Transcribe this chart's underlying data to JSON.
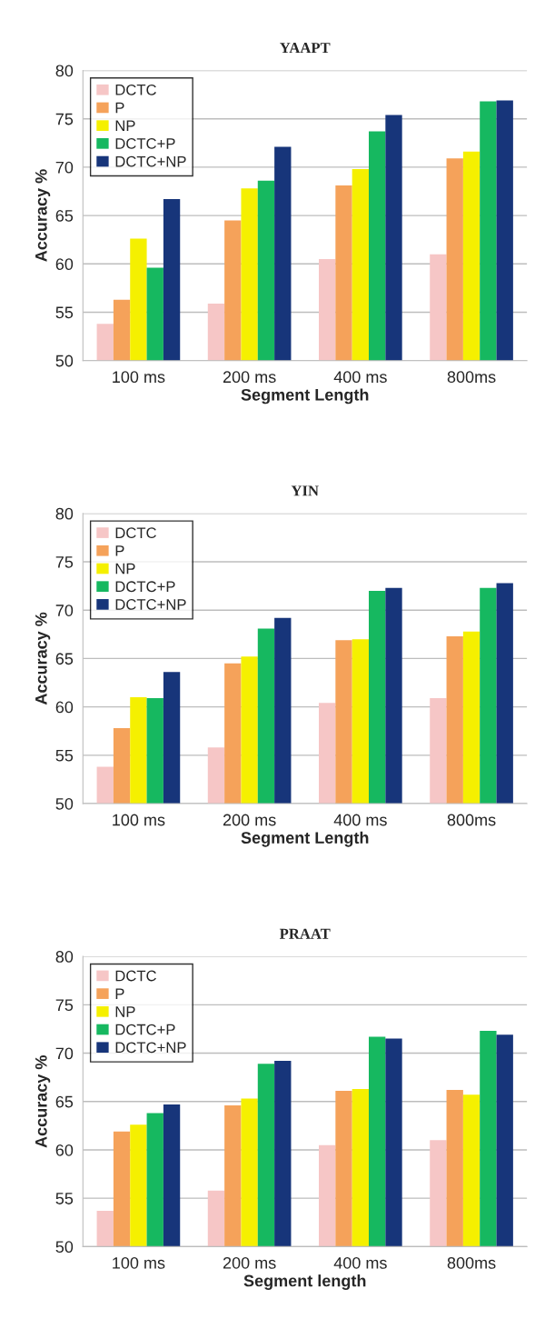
{
  "chart_data": [
    {
      "type": "bar",
      "title": "YAAPT",
      "xlabel": "Segment Length",
      "ylabel": "Accuracy %",
      "categories": [
        "100 ms",
        "200 ms",
        "400 ms",
        "800ms"
      ],
      "ylim": [
        50,
        80
      ],
      "yticks": [
        50,
        55,
        60,
        65,
        70,
        75,
        80
      ],
      "grid": "y",
      "legend": "top left",
      "series": [
        {
          "name": "DCTC",
          "color": "#f6c6c6",
          "values": [
            53.8,
            55.9,
            60.5,
            61.0
          ]
        },
        {
          "name": "P",
          "color": "#f5a25a",
          "values": [
            56.3,
            64.5,
            68.1,
            70.9
          ]
        },
        {
          "name": "NP",
          "color": "#f5f000",
          "values": [
            62.6,
            67.8,
            69.8,
            71.6
          ]
        },
        {
          "name": "DCTC+P",
          "color": "#16b860",
          "values": [
            59.6,
            68.6,
            73.7,
            76.8
          ]
        },
        {
          "name": "DCTC+NP",
          "color": "#17357a",
          "values": [
            66.7,
            72.1,
            75.4,
            76.9
          ]
        }
      ]
    },
    {
      "type": "bar",
      "title": "YIN",
      "xlabel": "Segment Length",
      "ylabel": "Accuracy %",
      "categories": [
        "100 ms",
        "200 ms",
        "400 ms",
        "800ms"
      ],
      "ylim": [
        50,
        80
      ],
      "yticks": [
        50,
        55,
        60,
        65,
        70,
        75,
        80
      ],
      "grid": "y",
      "legend": "top left",
      "series": [
        {
          "name": "DCTC",
          "color": "#f6c6c6",
          "values": [
            53.8,
            55.8,
            60.4,
            60.9
          ]
        },
        {
          "name": "P",
          "color": "#f5a25a",
          "values": [
            57.8,
            64.5,
            66.9,
            67.3
          ]
        },
        {
          "name": "NP",
          "color": "#f5f000",
          "values": [
            61.0,
            65.2,
            67.0,
            67.8
          ]
        },
        {
          "name": "DCTC+P",
          "color": "#16b860",
          "values": [
            60.9,
            68.1,
            72.0,
            72.3
          ]
        },
        {
          "name": "DCTC+NP",
          "color": "#17357a",
          "values": [
            63.6,
            69.2,
            72.3,
            72.8
          ]
        }
      ]
    },
    {
      "type": "bar",
      "title": "PRAAT",
      "xlabel": "Segment length",
      "ylabel": "Accuracy %",
      "categories": [
        "100 ms",
        "200 ms",
        "400 ms",
        "800ms"
      ],
      "ylim": [
        50,
        80
      ],
      "yticks": [
        50,
        55,
        60,
        65,
        70,
        75,
        80
      ],
      "grid": "y",
      "legend": "top left",
      "series": [
        {
          "name": "DCTC",
          "color": "#f6c6c6",
          "values": [
            53.7,
            55.8,
            60.5,
            61.0
          ]
        },
        {
          "name": "P",
          "color": "#f5a25a",
          "values": [
            61.9,
            64.6,
            66.1,
            66.2
          ]
        },
        {
          "name": "NP",
          "color": "#f5f000",
          "values": [
            62.6,
            65.3,
            66.3,
            65.7
          ]
        },
        {
          "name": "DCTC+P",
          "color": "#16b860",
          "values": [
            63.8,
            68.9,
            71.7,
            72.3
          ]
        },
        {
          "name": "DCTC+NP",
          "color": "#17357a",
          "values": [
            64.7,
            69.2,
            71.5,
            71.9
          ]
        }
      ]
    }
  ]
}
